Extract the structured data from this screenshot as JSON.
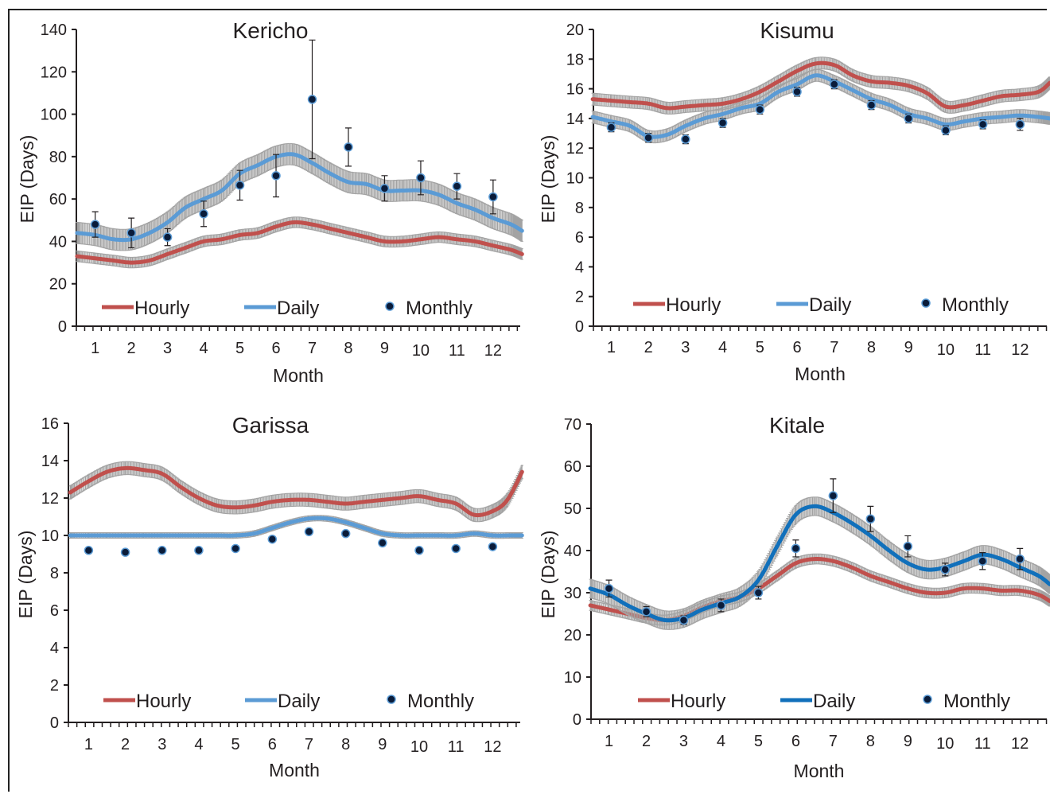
{
  "colors": {
    "hourly": "#c0504d",
    "daily": "#5b9bd5",
    "daily_dark": "#1170bb",
    "error_band": "#a3a3a3",
    "monthly": "#0a1c3a"
  },
  "chart_data": [
    {
      "type": "line",
      "title": "Kericho",
      "xlabel": "Month",
      "ylabel": "EIP (Days)",
      "ylim": [
        0,
        140
      ],
      "yticks": [
        "0",
        "20",
        "40",
        "60",
        "80",
        "100",
        "120",
        "140"
      ],
      "xticks": [
        "1",
        "2",
        "3",
        "4",
        "5",
        "6",
        "7",
        "8",
        "9",
        "10",
        "11",
        "12"
      ],
      "grid": false,
      "legend": [
        "Hourly",
        "Daily",
        "Monthly"
      ],
      "series": [
        {
          "name": "Hourly",
          "x": [
            0.5,
            1,
            1.5,
            2,
            2.5,
            3,
            3.5,
            4,
            4.5,
            5,
            5.5,
            6,
            6.5,
            7,
            7.5,
            8,
            8.5,
            9,
            9.5,
            10,
            10.5,
            11,
            11.5,
            12,
            12.5,
            12.8
          ],
          "values": [
            33,
            32,
            31,
            30,
            31,
            34,
            37,
            40,
            41,
            43,
            44,
            47,
            49,
            48,
            46,
            44,
            42,
            40,
            40,
            41,
            42,
            41,
            40,
            38,
            36,
            34
          ],
          "band": 2.5
        },
        {
          "name": "Daily",
          "x": [
            0.5,
            1,
            1.5,
            2,
            2.5,
            3,
            3.5,
            4,
            4.5,
            5,
            5.5,
            6,
            6.5,
            7,
            7.5,
            8,
            8.5,
            9,
            9.5,
            10,
            10.5,
            11,
            11.5,
            12,
            12.5,
            12.8
          ],
          "values": [
            44,
            43,
            41,
            41,
            44,
            49,
            56,
            60,
            64,
            72,
            76,
            80,
            81,
            77,
            72,
            68,
            67,
            64,
            64,
            64,
            62,
            58,
            55,
            51,
            48,
            45
          ],
          "band": 5
        },
        {
          "name": "Monthly",
          "x": [
            1,
            2,
            3,
            4,
            5,
            6,
            7,
            8,
            9,
            10,
            11,
            12
          ],
          "values": [
            48,
            44,
            42,
            53,
            66.5,
            71,
            107,
            84.5,
            65,
            70,
            66,
            61
          ],
          "err": [
            6,
            7,
            4,
            6,
            7,
            10,
            28,
            9,
            6,
            8,
            6,
            8
          ]
        }
      ]
    },
    {
      "type": "line",
      "title": "Kisumu",
      "xlabel": "Month",
      "ylabel": "EIP (Days)",
      "ylim": [
        0,
        20
      ],
      "yticks": [
        "0",
        "2",
        "4",
        "6",
        "8",
        "10",
        "12",
        "14",
        "16",
        "18",
        "20"
      ],
      "xticks": [
        "1",
        "2",
        "3",
        "4",
        "5",
        "6",
        "7",
        "8",
        "9",
        "10",
        "11",
        "12"
      ],
      "grid": false,
      "legend": [
        "Hourly",
        "Daily",
        "Monthly"
      ],
      "series": [
        {
          "name": "Hourly",
          "x": [
            0.5,
            1,
            1.5,
            2,
            2.5,
            3,
            3.5,
            4,
            4.5,
            5,
            5.5,
            6,
            6.5,
            7,
            7.5,
            8,
            8.5,
            9,
            9.5,
            10,
            10.5,
            11,
            11.5,
            12,
            12.5,
            12.8
          ],
          "values": [
            15.3,
            15.2,
            15.1,
            15,
            14.7,
            14.8,
            14.9,
            15,
            15.3,
            15.8,
            16.5,
            17.2,
            17.7,
            17.6,
            16.9,
            16.5,
            16.4,
            16.2,
            15.7,
            14.8,
            14.9,
            15.2,
            15.5,
            15.6,
            15.8,
            16.4
          ],
          "band": 0.4
        },
        {
          "name": "Daily",
          "x": [
            0.5,
            1,
            1.5,
            2,
            2.5,
            3,
            3.5,
            4,
            4.5,
            5,
            5.5,
            6,
            6.5,
            7,
            7.5,
            8,
            8.5,
            9,
            9.5,
            10,
            10.5,
            11,
            11.5,
            12,
            12.5,
            12.8
          ],
          "values": [
            14.1,
            13.8,
            13.5,
            12.8,
            12.9,
            13.5,
            14,
            14.3,
            14.7,
            15,
            15.8,
            16.3,
            16.9,
            16.5,
            15.9,
            15.3,
            14.9,
            14.3,
            14,
            13.6,
            13.8,
            14,
            14.1,
            14.2,
            14.1,
            14
          ],
          "band": 0.4
        },
        {
          "name": "Monthly",
          "x": [
            1,
            2,
            3,
            4,
            5,
            6,
            7,
            8,
            9,
            10,
            11,
            12
          ],
          "values": [
            13.4,
            12.7,
            12.6,
            13.7,
            14.6,
            15.8,
            16.3,
            14.9,
            14,
            13.2,
            13.6,
            13.6
          ],
          "err": [
            0.3,
            0.3,
            0.3,
            0.3,
            0.3,
            0.3,
            0.3,
            0.3,
            0.3,
            0.3,
            0.3,
            0.4
          ]
        }
      ]
    },
    {
      "type": "line",
      "title": "Garissa",
      "xlabel": "Month",
      "ylabel": "EIP (Days)",
      "ylim": [
        0,
        16
      ],
      "yticks": [
        "0",
        "2",
        "4",
        "6",
        "8",
        "10",
        "12",
        "14",
        "16"
      ],
      "xticks": [
        "1",
        "2",
        "3",
        "4",
        "5",
        "6",
        "7",
        "8",
        "9",
        "10",
        "11",
        "12"
      ],
      "grid": false,
      "legend": [
        "Hourly",
        "Daily",
        "Monthly"
      ],
      "series": [
        {
          "name": "Hourly",
          "x": [
            0.5,
            1,
            1.5,
            2,
            2.5,
            3,
            3.5,
            4,
            4.5,
            5,
            5.5,
            6,
            6.5,
            7,
            7.5,
            8,
            8.5,
            9,
            9.5,
            10,
            10.5,
            11,
            11.5,
            12,
            12.4,
            12.8
          ],
          "values": [
            12.3,
            12.9,
            13.4,
            13.6,
            13.5,
            13.3,
            12.6,
            12,
            11.6,
            11.5,
            11.6,
            11.8,
            11.9,
            11.9,
            11.8,
            11.7,
            11.8,
            11.9,
            12,
            12.1,
            11.9,
            11.7,
            11.1,
            11.3,
            11.9,
            13.4
          ],
          "band": 0.35
        },
        {
          "name": "Daily",
          "x": [
            0.5,
            1,
            1.5,
            2,
            2.5,
            3,
            3.5,
            4,
            4.5,
            5,
            5.5,
            6,
            6.5,
            7,
            7.5,
            8,
            8.5,
            9,
            9.5,
            10,
            10.5,
            11,
            11.5,
            12,
            12.5,
            12.8
          ],
          "values": [
            10,
            10,
            10,
            10,
            10,
            10,
            10,
            10,
            10,
            10,
            10.1,
            10.4,
            10.7,
            10.9,
            10.9,
            10.7,
            10.4,
            10.1,
            10,
            10,
            10,
            10,
            10.1,
            10,
            10,
            10
          ],
          "band": 0.15
        },
        {
          "name": "Monthly",
          "x": [
            1,
            2,
            3,
            4,
            5,
            6,
            7,
            8,
            9,
            10,
            11,
            12
          ],
          "values": [
            9.2,
            9.1,
            9.2,
            9.2,
            9.3,
            9.8,
            10.2,
            10.1,
            9.6,
            9.2,
            9.3,
            9.4
          ],
          "err": [
            0,
            0,
            0,
            0,
            0,
            0,
            0,
            0,
            0,
            0,
            0,
            0
          ]
        }
      ]
    },
    {
      "type": "line",
      "title": "Kitale",
      "xlabel": "Month",
      "ylabel": "EIP (Days)",
      "ylim": [
        0,
        70
      ],
      "yticks": [
        "0",
        "10",
        "20",
        "30",
        "40",
        "50",
        "60",
        "70"
      ],
      "xticks": [
        "1",
        "2",
        "3",
        "4",
        "5",
        "6",
        "7",
        "8",
        "9",
        "10",
        "11",
        "12"
      ],
      "grid": false,
      "legend": [
        "Hourly",
        "Daily",
        "Monthly"
      ],
      "series": [
        {
          "name": "Hourly",
          "x": [
            0.5,
            1,
            1.5,
            2,
            2.5,
            3,
            3.5,
            4,
            4.5,
            5,
            5.5,
            6,
            6.5,
            7,
            7.5,
            8,
            8.5,
            9,
            9.5,
            10,
            10.5,
            11,
            11.5,
            12,
            12.5,
            12.8
          ],
          "values": [
            27,
            26,
            25,
            24,
            23.5,
            24.5,
            26.5,
            28,
            29,
            31,
            34,
            37,
            38,
            37.5,
            36,
            34,
            32.5,
            31,
            30,
            30,
            31,
            31,
            30.5,
            30.5,
            29.5,
            28
          ],
          "band": 1.2
        },
        {
          "name": "Daily",
          "x": [
            0.5,
            1,
            1.5,
            2,
            2.5,
            3,
            3.5,
            4,
            4.5,
            5,
            5.5,
            6,
            6.5,
            7,
            7.5,
            8,
            8.5,
            9,
            9.5,
            10,
            10.5,
            11,
            11.5,
            12,
            12.5,
            12.8
          ],
          "values": [
            31,
            29.5,
            27,
            25,
            23.5,
            24,
            26,
            27.5,
            29,
            33,
            41,
            48.5,
            50.5,
            49,
            46.5,
            43.5,
            40,
            37,
            35.5,
            36,
            37.5,
            39,
            38,
            36,
            34,
            32
          ],
          "band": 2.2
        },
        {
          "name": "Monthly",
          "x": [
            1,
            2,
            3,
            4,
            5,
            6,
            7,
            8,
            9,
            10,
            11,
            12
          ],
          "values": [
            31,
            25.5,
            23.5,
            27,
            30,
            40.5,
            53,
            47.5,
            41,
            35.5,
            37.5,
            38
          ],
          "err": [
            2,
            1.2,
            1,
            1.5,
            1.5,
            2,
            4,
            3,
            2.5,
            1.5,
            2,
            2.5
          ]
        }
      ]
    }
  ]
}
